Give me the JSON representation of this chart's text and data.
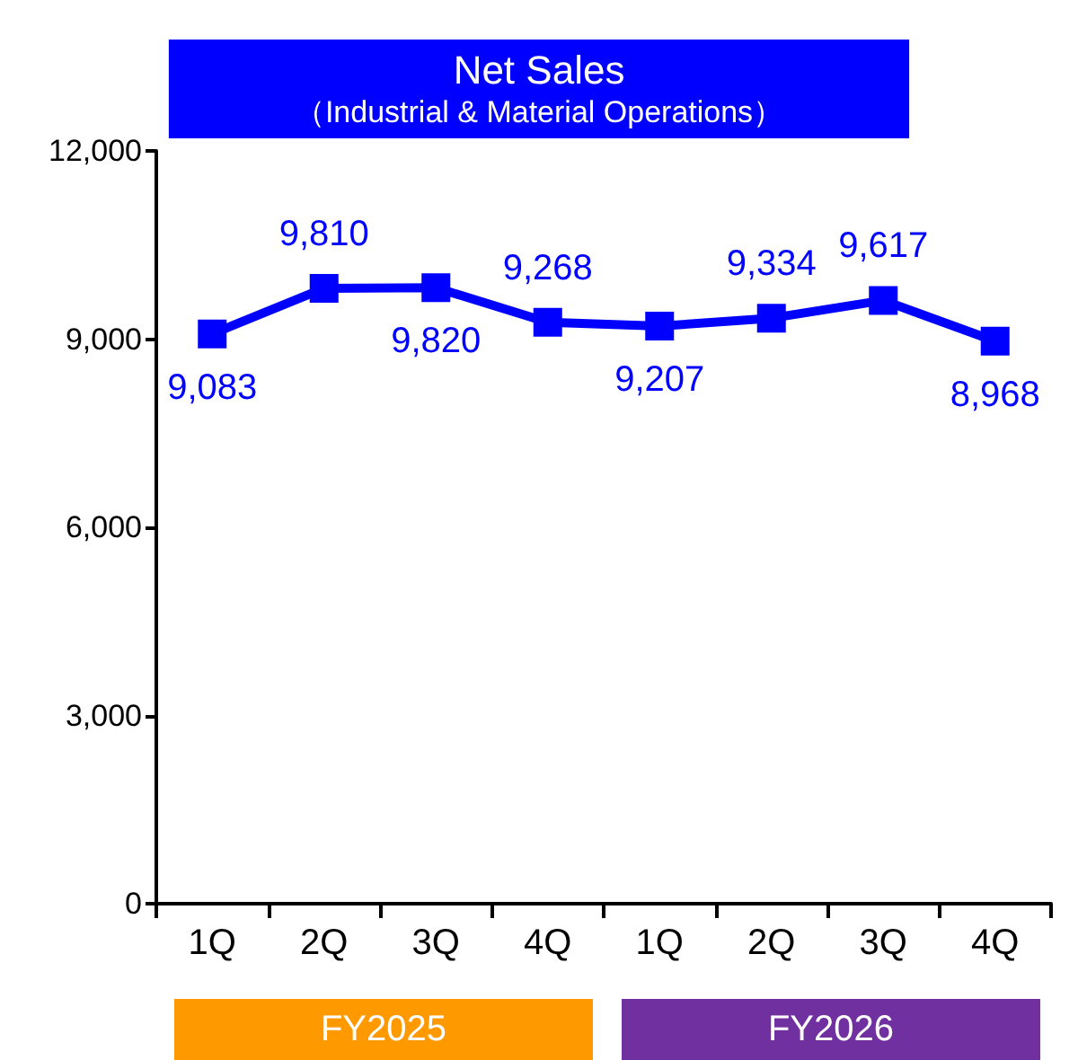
{
  "chart_data": {
    "type": "line",
    "title": "Net Sales",
    "subtitle": "（Industrial & Material Operations）",
    "categories": [
      "1Q",
      "2Q",
      "3Q",
      "4Q",
      "1Q",
      "2Q",
      "3Q",
      "4Q"
    ],
    "series": [
      {
        "color": "#0000ff",
        "values": [
          9083,
          9810,
          9820,
          9268,
          9207,
          9334,
          9617,
          8968
        ],
        "value_labels": [
          "9,083",
          "9,810",
          "9,820",
          "9,268",
          "9,207",
          "9,334",
          "9,617",
          "8,968"
        ]
      }
    ],
    "ylim": [
      0,
      12000
    ],
    "yticks": [
      0,
      {
        "value": 3000,
        "label": "3,000"
      },
      {
        "value": 6000,
        "label": "6,000"
      },
      {
        "value": 9000,
        "label": "9,000"
      },
      {
        "value": 12000,
        "label": "12,000"
      }
    ],
    "grid": false,
    "marker": "square",
    "line_style": "solid",
    "annotations": [
      "FY2025",
      "FY2026"
    ]
  }
}
